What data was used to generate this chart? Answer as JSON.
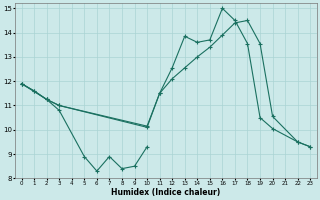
{
  "xlabel": "Humidex (Indice chaleur)",
  "xlim": [
    -0.5,
    23.5
  ],
  "ylim": [
    8,
    15.2
  ],
  "yticks": [
    8,
    9,
    10,
    11,
    12,
    13,
    14,
    15
  ],
  "xticks": [
    0,
    1,
    2,
    3,
    4,
    5,
    6,
    7,
    8,
    9,
    10,
    11,
    12,
    13,
    14,
    15,
    16,
    17,
    18,
    19,
    20,
    21,
    22,
    23
  ],
  "background_color": "#cce9e9",
  "grid_color": "#aad4d4",
  "line_color": "#1a7060",
  "line1_x": [
    0,
    1,
    2,
    3,
    5,
    6,
    7,
    8,
    9,
    10
  ],
  "line1_y": [
    11.9,
    11.6,
    11.25,
    10.8,
    8.9,
    8.3,
    8.9,
    8.4,
    8.5,
    9.3
  ],
  "line2_x": [
    0,
    1,
    2,
    3,
    10,
    11,
    12,
    13,
    14,
    15,
    16,
    17,
    18,
    19,
    20,
    22,
    23
  ],
  "line2_y": [
    11.9,
    11.6,
    11.25,
    11.0,
    10.1,
    11.5,
    12.55,
    13.85,
    13.6,
    13.7,
    15.0,
    14.5,
    13.55,
    10.5,
    10.05,
    9.5,
    9.3
  ],
  "line3_x": [
    0,
    2,
    3,
    10,
    11,
    12,
    13,
    14,
    15,
    16,
    17,
    18,
    19,
    20,
    22,
    23
  ],
  "line3_y": [
    11.9,
    11.25,
    11.0,
    10.15,
    11.5,
    12.1,
    12.55,
    13.0,
    13.4,
    13.9,
    14.4,
    14.5,
    13.55,
    10.55,
    9.5,
    9.3
  ]
}
